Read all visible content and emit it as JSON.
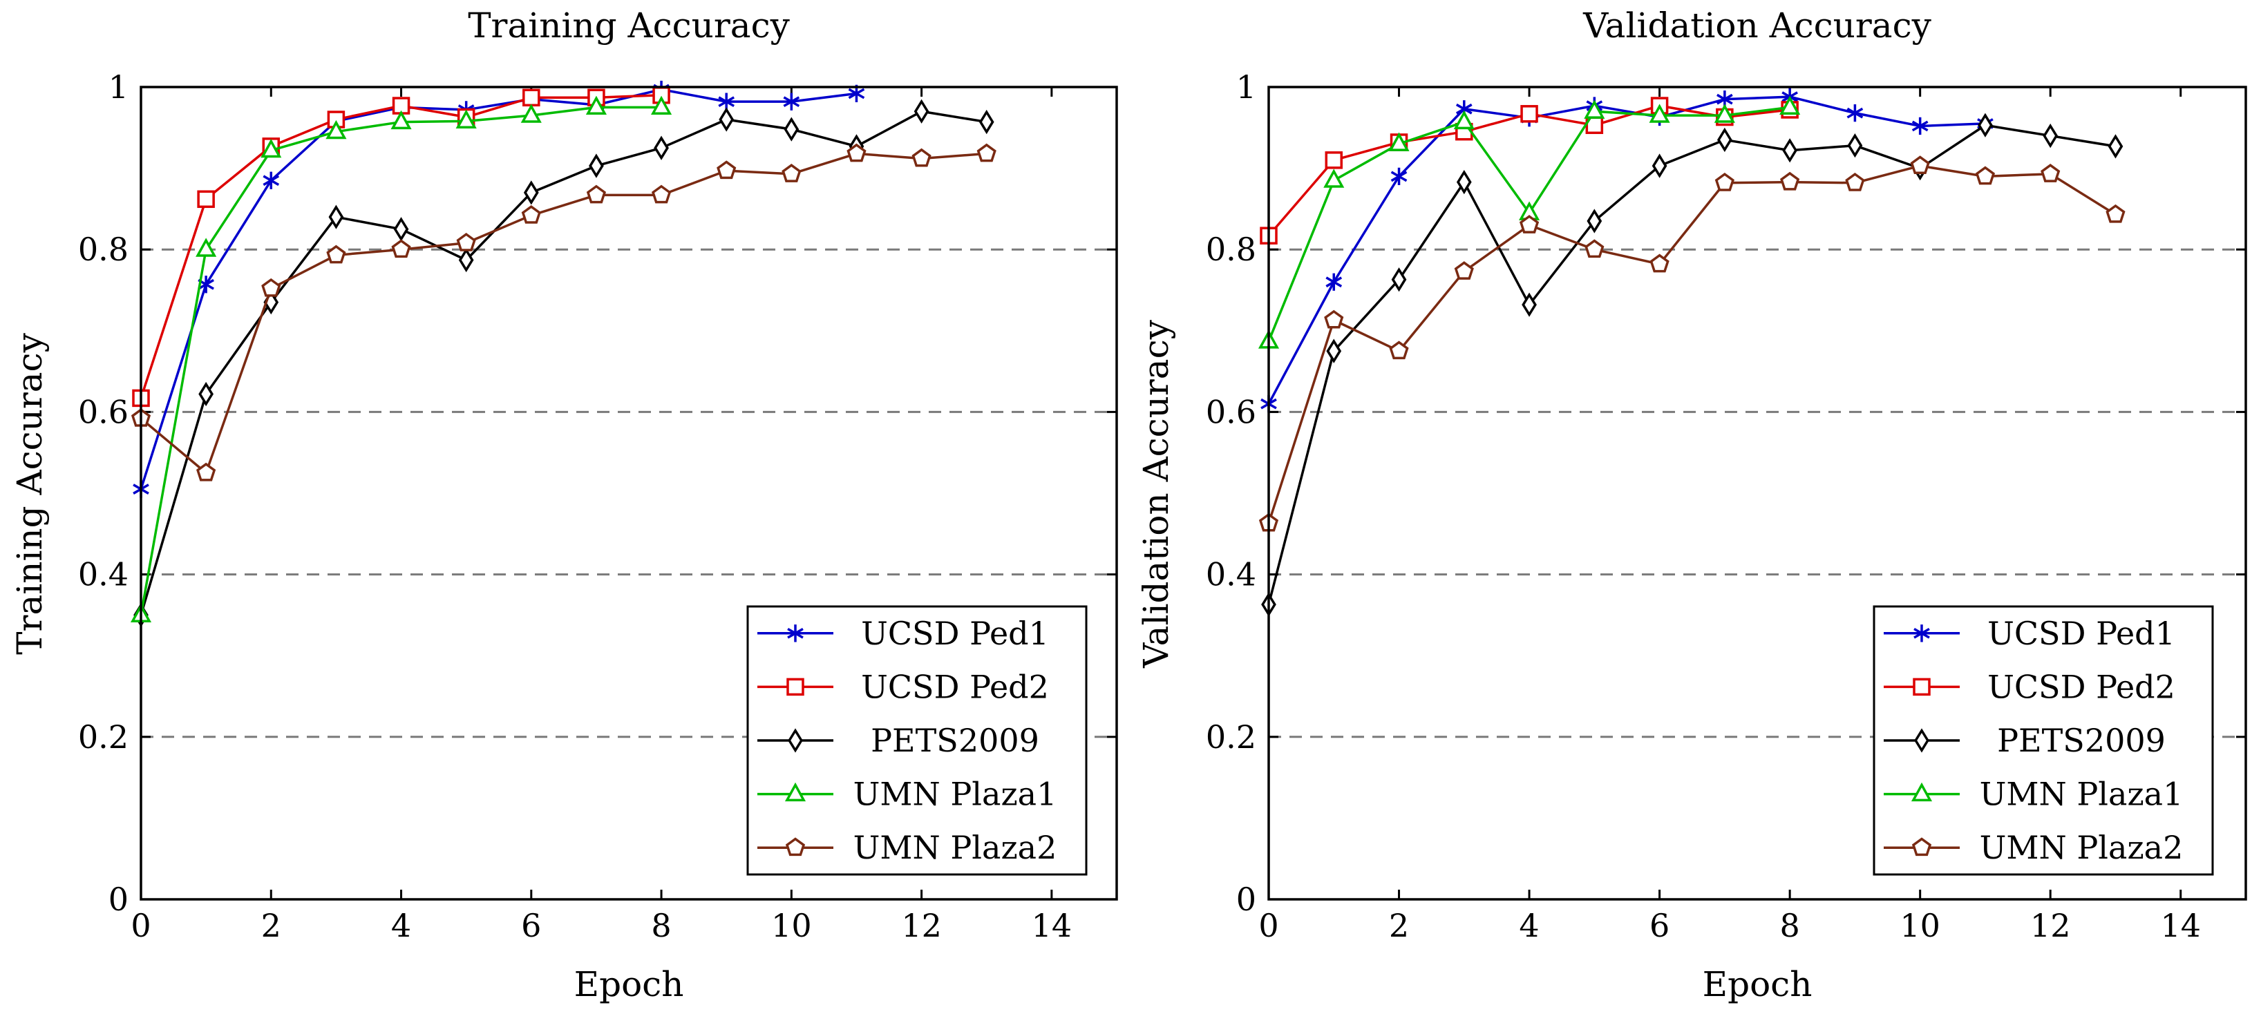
{
  "chart_data": [
    {
      "type": "line",
      "title": "Training Accuracy",
      "xlabel": "Epoch",
      "ylabel": "Training Accuracy",
      "xlim": [
        0,
        15
      ],
      "ylim": [
        0,
        1
      ],
      "xticks": [
        0,
        2,
        4,
        6,
        8,
        10,
        12,
        14
      ],
      "xtick_labels": [
        "0",
        "2",
        "4",
        "6",
        "8",
        "10",
        "12",
        "14"
      ],
      "yticks": [
        0,
        0.2,
        0.4,
        0.6,
        0.8,
        1
      ],
      "ytick_labels": [
        "0",
        "0.2",
        "0.4",
        "0.6",
        "0.8",
        "1"
      ],
      "grid": "horizontal dashed",
      "legend_position": "bottom-right",
      "series": [
        {
          "name": "UCSD Ped1",
          "color": "#0000cc",
          "marker": "star",
          "x": [
            0,
            1,
            2,
            3,
            4,
            5,
            6,
            7,
            8,
            9,
            10,
            11
          ],
          "y": [
            0.505,
            0.757,
            0.885,
            0.958,
            0.975,
            0.972,
            0.985,
            0.978,
            0.997,
            0.982,
            0.982,
            0.992
          ]
        },
        {
          "name": "UCSD Ped2",
          "color": "#dd0000",
          "marker": "square",
          "x": [
            0,
            1,
            2,
            3,
            4,
            5,
            6,
            7,
            8
          ],
          "y": [
            0.617,
            0.862,
            0.927,
            0.96,
            0.977,
            0.963,
            0.987,
            0.987,
            0.99
          ]
        },
        {
          "name": "PETS2009",
          "color": "#000000",
          "marker": "diamond",
          "x": [
            0,
            1,
            2,
            3,
            4,
            5,
            6,
            7,
            8,
            9,
            10,
            11,
            12,
            13
          ],
          "y": [
            0.35,
            0.622,
            0.735,
            0.84,
            0.825,
            0.787,
            0.87,
            0.903,
            0.925,
            0.96,
            0.948,
            0.927,
            0.97,
            0.957
          ]
        },
        {
          "name": "UMN Plaza1",
          "color": "#00bb00",
          "marker": "triangle",
          "x": [
            0,
            1,
            2,
            3,
            4,
            5,
            6,
            7,
            8
          ],
          "y": [
            0.35,
            0.8,
            0.922,
            0.945,
            0.957,
            0.958,
            0.965,
            0.975,
            0.975
          ]
        },
        {
          "name": "UMN Plaza2",
          "color": "#7a2a12",
          "marker": "pentagon",
          "x": [
            0,
            1,
            2,
            3,
            4,
            5,
            6,
            7,
            8,
            9,
            10,
            11,
            12,
            13
          ],
          "y": [
            0.592,
            0.525,
            0.752,
            0.793,
            0.8,
            0.808,
            0.842,
            0.867,
            0.867,
            0.897,
            0.893,
            0.918,
            0.912,
            0.918
          ]
        }
      ]
    },
    {
      "type": "line",
      "title": "Validation Accuracy",
      "xlabel": "Epoch",
      "ylabel": "Validation Accuracy",
      "xlim": [
        0,
        15
      ],
      "ylim": [
        0,
        1
      ],
      "xticks": [
        0,
        2,
        4,
        6,
        8,
        10,
        12,
        14
      ],
      "xtick_labels": [
        "0",
        "2",
        "4",
        "6",
        "8",
        "10",
        "12",
        "14"
      ],
      "yticks": [
        0,
        0.2,
        0.4,
        0.6,
        0.8,
        1
      ],
      "ytick_labels": [
        "0",
        "0.2",
        "0.4",
        "0.6",
        "0.8",
        "1"
      ],
      "grid": "horizontal dashed",
      "legend_position": "bottom-right",
      "series": [
        {
          "name": "UCSD Ped1",
          "color": "#0000cc",
          "marker": "star",
          "x": [
            0,
            1,
            2,
            3,
            4,
            5,
            6,
            7,
            8,
            9,
            10,
            11
          ],
          "y": [
            0.61,
            0.76,
            0.89,
            0.973,
            0.962,
            0.977,
            0.963,
            0.985,
            0.988,
            0.968,
            0.952,
            0.955
          ]
        },
        {
          "name": "UCSD Ped2",
          "color": "#dd0000",
          "marker": "square",
          "x": [
            0,
            1,
            2,
            3,
            4,
            5,
            6,
            7,
            8
          ],
          "y": [
            0.817,
            0.91,
            0.932,
            0.945,
            0.967,
            0.953,
            0.977,
            0.963,
            0.972
          ]
        },
        {
          "name": "PETS2009",
          "color": "#000000",
          "marker": "diamond",
          "x": [
            0,
            1,
            2,
            3,
            4,
            5,
            6,
            7,
            8,
            9,
            10,
            11,
            12,
            13
          ],
          "y": [
            0.363,
            0.675,
            0.763,
            0.883,
            0.732,
            0.835,
            0.903,
            0.935,
            0.922,
            0.928,
            0.9,
            0.953,
            0.94,
            0.927
          ]
        },
        {
          "name": "UMN Plaza1",
          "color": "#00bb00",
          "marker": "triangle",
          "x": [
            0,
            1,
            2,
            3,
            4,
            5,
            6,
            7,
            8
          ],
          "y": [
            0.687,
            0.885,
            0.93,
            0.957,
            0.845,
            0.97,
            0.965,
            0.965,
            0.975
          ]
        },
        {
          "name": "UMN Plaza2",
          "color": "#7a2a12",
          "marker": "pentagon",
          "x": [
            0,
            1,
            2,
            3,
            4,
            5,
            6,
            7,
            8,
            9,
            10,
            11,
            12,
            13
          ],
          "y": [
            0.463,
            0.713,
            0.675,
            0.773,
            0.83,
            0.8,
            0.782,
            0.882,
            0.883,
            0.882,
            0.903,
            0.89,
            0.893,
            0.843
          ]
        }
      ]
    }
  ]
}
